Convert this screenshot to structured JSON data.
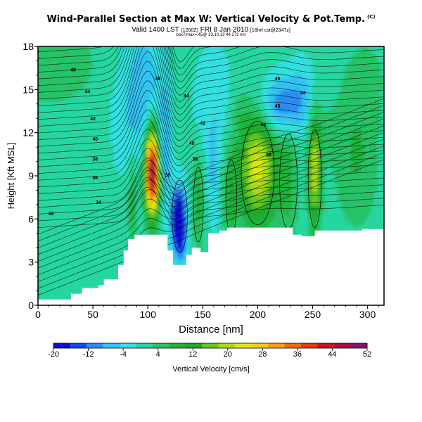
{
  "header": {
    "title": "Wind-Parallel Section at Max W: Vertical Velocity & Pot.Temp.",
    "title_mark": "(C)",
    "subtitle_main": "Valid 1400 LST",
    "subtitle_paren": "(1200Z)",
    "subtitle_date": "FRI 8 Jan 2010",
    "subtitle_run": "[16hrf cst@2347z]",
    "subtitle2": "box7/max=.45@ 33.10,13 44.273 nm"
  },
  "chart_data": {
    "type": "heatmap",
    "xlabel": "Distance [nm]",
    "ylabel": "Height [Kft MSL]",
    "xlim": [
      0,
      315
    ],
    "ylim": [
      0,
      18
    ],
    "xticks": [
      0,
      50,
      100,
      150,
      200,
      250,
      300
    ],
    "yticks": [
      0,
      3,
      6,
      9,
      12,
      15,
      18
    ],
    "colorbar": {
      "label": "Vertical Velocity [cm/s]",
      "tick_labels": [
        "-20",
        "-12",
        "-4",
        "4",
        "12",
        "20",
        "28",
        "36",
        "44",
        "52"
      ],
      "colors": [
        "#0a10d8",
        "#1448f0",
        "#2c8cf0",
        "#33c2f2",
        "#33e0e0",
        "#25d6a0",
        "#25c266",
        "#1fb43a",
        "#22a82a",
        "#66c81e",
        "#aadc14",
        "#dcea10",
        "#f4d20c",
        "#f5a00a",
        "#f06a0a",
        "#e8380c",
        "#d40f1c",
        "#b00a40",
        "#8c1070"
      ]
    },
    "theta_labels": [
      "46",
      "48",
      "46",
      "44",
      "44",
      "44",
      "42",
      "42",
      "43",
      "40",
      "40",
      "40",
      "38",
      "38",
      "38",
      "36",
      "36",
      "34",
      "32"
    ],
    "terrain_profile_kft": [
      [
        0,
        0.4
      ],
      [
        30,
        0.4
      ],
      [
        30,
        0.8
      ],
      [
        40,
        0.8
      ],
      [
        40,
        1.2
      ],
      [
        55,
        1.2
      ],
      [
        55,
        1.4
      ],
      [
        60,
        1.4
      ],
      [
        60,
        1.8
      ],
      [
        73,
        1.8
      ],
      [
        73,
        2.8
      ],
      [
        78,
        2.8
      ],
      [
        78,
        3.8
      ],
      [
        82,
        3.8
      ],
      [
        82,
        4.6
      ],
      [
        88,
        4.6
      ],
      [
        88,
        4.9
      ],
      [
        118,
        4.9
      ],
      [
        118,
        3.8
      ],
      [
        123,
        3.8
      ],
      [
        123,
        2.8
      ],
      [
        135,
        2.8
      ],
      [
        135,
        3.5
      ],
      [
        140,
        3.5
      ],
      [
        140,
        4.0
      ],
      [
        148,
        4.0
      ],
      [
        148,
        3.7
      ],
      [
        155,
        3.7
      ],
      [
        155,
        5.0
      ],
      [
        165,
        5.0
      ],
      [
        165,
        5.2
      ],
      [
        172,
        5.2
      ],
      [
        172,
        5.4
      ],
      [
        232,
        5.4
      ],
      [
        232,
        4.9
      ],
      [
        240,
        4.9
      ],
      [
        240,
        4.8
      ],
      [
        252,
        4.8
      ],
      [
        252,
        5.2
      ],
      [
        295,
        5.2
      ],
      [
        295,
        5.3
      ],
      [
        315,
        5.3
      ]
    ],
    "features": [
      {
        "name": "updraft-core",
        "x": 104,
        "z": 9.3,
        "peak_w_cm_s": 52
      },
      {
        "name": "downdraft-core",
        "x": 128,
        "z": 5.9,
        "peak_w_cm_s": -20
      },
      {
        "name": "updraft-secondary",
        "x": 198,
        "z": 9.6,
        "peak_w_cm_s": 26
      },
      {
        "name": "updraft-tertiary",
        "x": 252,
        "z": 9.2,
        "peak_w_cm_s": 24
      },
      {
        "name": "downdraft-upper",
        "x": 220,
        "z": 13.8,
        "peak_w_cm_s": -12
      }
    ]
  }
}
